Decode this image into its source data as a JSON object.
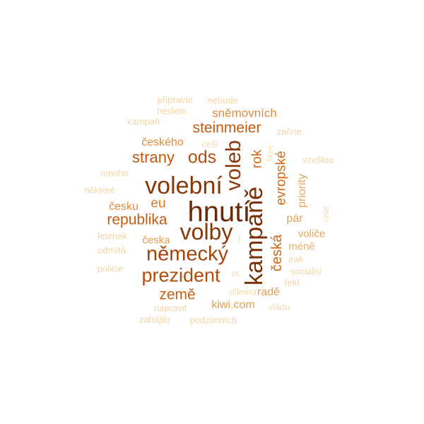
{
  "words": [
    {
      "text": "hnutí",
      "color": "#6b2a06",
      "weight": 40
    },
    {
      "text": "kampaně",
      "color": "#7a3006",
      "weight": 34
    },
    {
      "text": "volební",
      "color": "#8a3708",
      "weight": 34
    },
    {
      "text": "volby",
      "color": "#8a3708",
      "weight": 32
    },
    {
      "text": "voleb",
      "color": "#8a3708",
      "weight": 30
    },
    {
      "text": "německý",
      "color": "#a4440a",
      "weight": 29
    },
    {
      "text": "prezident",
      "color": "#b34b0b",
      "weight": 27
    },
    {
      "text": "ods",
      "color": "#b54c0c",
      "weight": 25
    },
    {
      "text": "strany",
      "color": "#c2590f",
      "weight": 22
    },
    {
      "text": "steinmeier",
      "color": "#c45b10",
      "weight": 21
    },
    {
      "text": "republika",
      "color": "#c65e12",
      "weight": 21
    },
    {
      "text": "země",
      "color": "#c86014",
      "weight": 21
    },
    {
      "text": "česká",
      "color": "#cf6715",
      "weight": 20
    },
    {
      "text": "evropské",
      "color": "#d26b17",
      "weight": 19
    },
    {
      "text": "rok",
      "color": "#d26b17",
      "weight": 19
    },
    {
      "text": "eu",
      "color": "#d77a28",
      "weight": 19
    },
    {
      "text": "sněmovních",
      "color": "#dc8c3e",
      "weight": 17
    },
    {
      "text": "českého",
      "color": "#de8d3f",
      "weight": 16
    },
    {
      "text": "česku",
      "color": "#de8d3f",
      "weight": 16
    },
    {
      "text": "kiwi.com",
      "color": "#e09d51",
      "weight": 16
    },
    {
      "text": "priority",
      "color": "#e3a75d",
      "weight": 16
    },
    {
      "text": "pár",
      "color": "#e3a359",
      "weight": 16
    },
    {
      "text": "radě",
      "color": "#e29e55",
      "weight": 16
    },
    {
      "text": "česka",
      "color": "#e29e55",
      "weight": 15
    },
    {
      "text": "voliče",
      "color": "#e3a75d",
      "weight": 15
    },
    {
      "text": "méně",
      "color": "#e6b26c",
      "weight": 15
    },
    {
      "text": "připravte",
      "color": "#f3d5a4",
      "weight": 13
    },
    {
      "text": "nebude",
      "color": "#f3d5a4",
      "weight": 13
    },
    {
      "text": "heslem",
      "color": "#f3d5a4",
      "weight": 13
    },
    {
      "text": "kampaň",
      "color": "#f3d5a4",
      "weight": 13
    },
    {
      "text": "začne",
      "color": "#f3d5a4",
      "weight": 13
    },
    {
      "text": "češi",
      "color": "#f5dcb0",
      "weight": 13
    },
    {
      "text": "fáze",
      "color": "#f5dcb0",
      "weight": 12
    },
    {
      "text": "vzešlou",
      "color": "#f3d5a4",
      "weight": 13
    },
    {
      "text": "mnoho",
      "color": "#f3d5a4",
      "weight": 13
    },
    {
      "text": "některé",
      "color": "#f3d5a4",
      "weight": 13
    },
    {
      "text": "unie",
      "color": "#f5dcb0",
      "weight": 12
    },
    {
      "text": "letenek",
      "color": "#f3d5a4",
      "weight": 13
    },
    {
      "text": "j",
      "color": "#f5dcb0",
      "weight": 12
    },
    {
      "text": "odmítá",
      "color": "#f3d5a4",
      "weight": 13
    },
    {
      "text": "irák",
      "color": "#f3d5a4",
      "weight": 13
    },
    {
      "text": "policie",
      "color": "#f3d5a4",
      "weight": 13
    },
    {
      "text": "pc",
      "color": "#f5dcb0",
      "weight": 12
    },
    {
      "text": "sociální",
      "color": "#f3d5a4",
      "weight": 13
    },
    {
      "text": "řekl",
      "color": "#f3d5a4",
      "weight": 13
    },
    {
      "text": "dilema",
      "color": "#f5dcb0",
      "weight": 13
    },
    {
      "text": "napravit",
      "color": "#f3d5a4",
      "weight": 13
    },
    {
      "text": "vládu",
      "color": "#f5dcb0",
      "weight": 13
    },
    {
      "text": "zahájilo",
      "color": "#f3d5a4",
      "weight": 13
    },
    {
      "text": "podzimních",
      "color": "#f3d5a4",
      "weight": 13
    }
  ]
}
